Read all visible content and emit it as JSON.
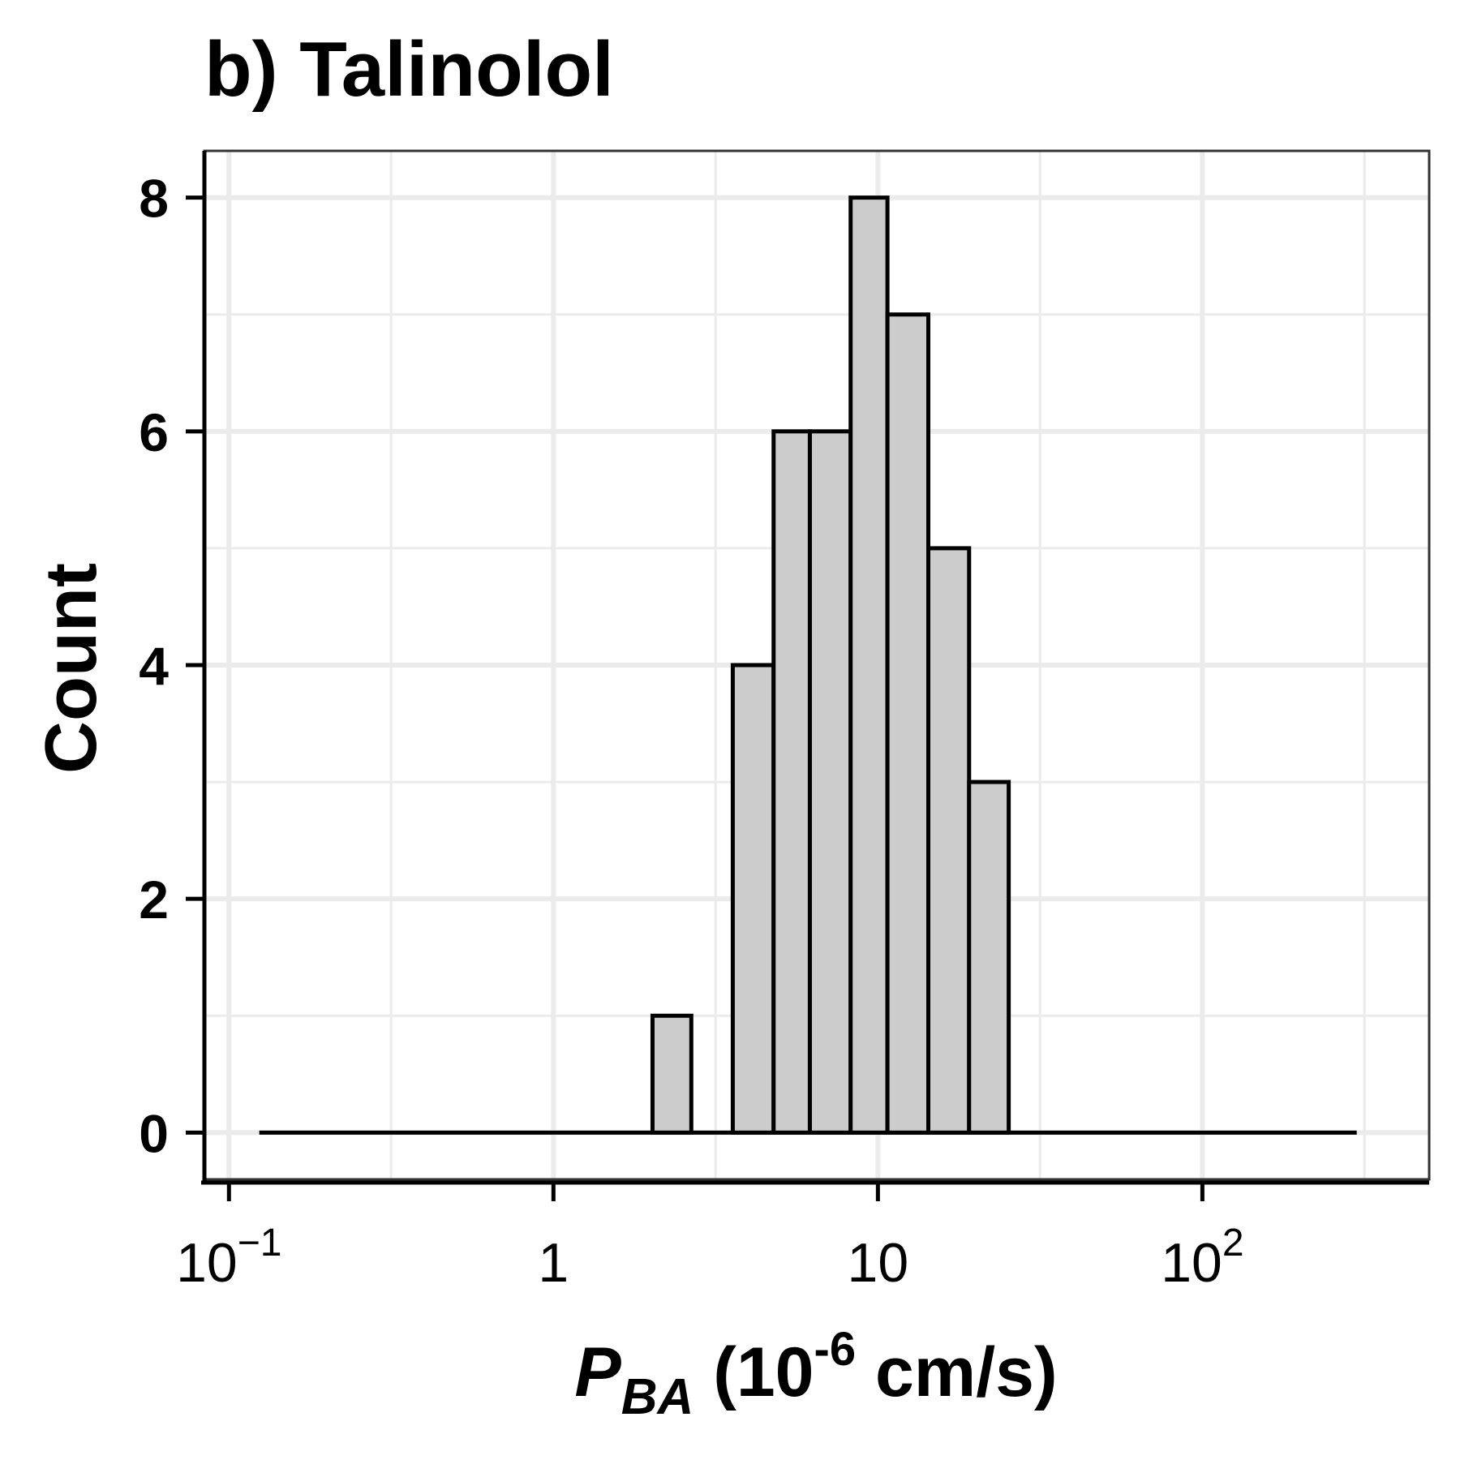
{
  "chart_data": {
    "type": "bar",
    "title": "b) Talinolol",
    "xlabel": {
      "main": "P",
      "subscript": "BA",
      "unit_open": " (10",
      "unit_exponent": "-6",
      "unit_close": " cm/s)"
    },
    "ylabel": "Count",
    "x_scale": "log",
    "xlim": [
      0.084,
      500
    ],
    "ylim": [
      -0.4,
      8.4
    ],
    "x_ticks": [
      {
        "value": 0.1,
        "base": "10",
        "exponent": "−1"
      },
      {
        "value": 1,
        "base": "1",
        "exponent": ""
      },
      {
        "value": 10,
        "base": "10",
        "exponent": ""
      },
      {
        "value": 100,
        "base": "10",
        "exponent": "2"
      }
    ],
    "x_minor_gridlines": [
      0.316,
      3.16,
      31.6,
      316
    ],
    "y_ticks": [
      {
        "value": 0,
        "label": "0"
      },
      {
        "value": 2,
        "label": "2"
      },
      {
        "value": 4,
        "label": "4"
      },
      {
        "value": 6,
        "label": "6"
      },
      {
        "value": 8,
        "label": "8"
      }
    ],
    "y_minor_gridlines": [
      1,
      3,
      5,
      7
    ],
    "baseline_range": [
      0.124,
      299
    ],
    "bins": [
      {
        "x0": 2.02,
        "x1": 2.66,
        "count": 1
      },
      {
        "x0": 3.57,
        "x1": 4.77,
        "count": 4
      },
      {
        "x0": 4.77,
        "x1": 6.17,
        "count": 6
      },
      {
        "x0": 6.17,
        "x1": 8.24,
        "count": 6
      },
      {
        "x0": 8.24,
        "x1": 10.7,
        "count": 8
      },
      {
        "x0": 10.7,
        "x1": 14.3,
        "count": 7
      },
      {
        "x0": 14.3,
        "x1": 19.1,
        "count": 5
      },
      {
        "x0": 19.1,
        "x1": 25.3,
        "count": 3
      }
    ],
    "grid": true,
    "legend": "none",
    "colors": {
      "bar_fill": "#cccccc",
      "bar_stroke": "#000000",
      "grid": "#ebebeb",
      "panel_border": "#333333",
      "background": "#ffffff"
    }
  }
}
